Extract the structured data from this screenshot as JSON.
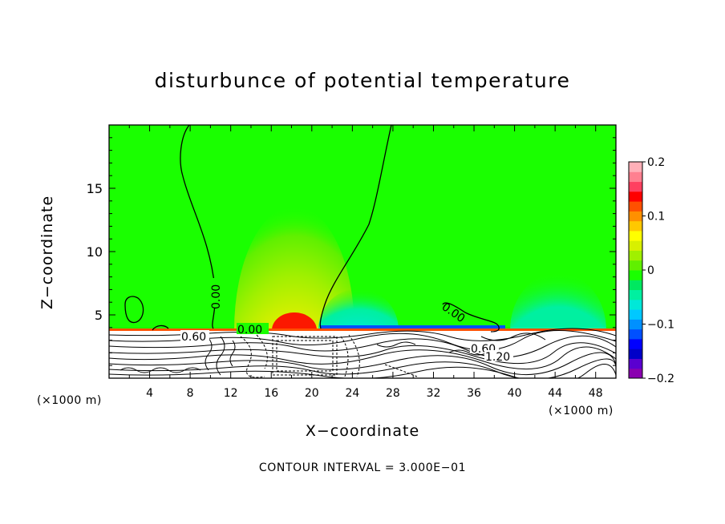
{
  "chart_data": {
    "type": "heatmap",
    "title": "disturbunce of potential temperature",
    "xlabel": "X−coordinate",
    "ylabel": "Z−coordinate",
    "x_unit": "(×1000 m)",
    "xlim": [
      0,
      50
    ],
    "ylim": [
      0,
      20
    ],
    "x_ticks": [
      4,
      8,
      12,
      16,
      20,
      24,
      28,
      32,
      36,
      40,
      44,
      48
    ],
    "y_ticks": [
      5,
      10,
      15
    ],
    "colorbar": {
      "range": [
        -0.2,
        0.2
      ],
      "tick_values": [
        0.2,
        0.1,
        0,
        -0.1,
        -0.2
      ],
      "tick_labels": [
        "0.2",
        "0.1",
        "0",
        "−0.1",
        "−0.2"
      ],
      "colors": [
        "#8a00b0",
        "#5a00d0",
        "#0000c8",
        "#0000ff",
        "#0050ff",
        "#0090ff",
        "#00c8ff",
        "#00e8d8",
        "#00f0a0",
        "#00e860",
        "#1aff00",
        "#60f000",
        "#a0f000",
        "#d8f000",
        "#ffff00",
        "#ffc800",
        "#ff9000",
        "#ff5000",
        "#ff0000",
        "#ff4060",
        "#ff8090",
        "#ffb0b8"
      ]
    },
    "contour_interval": "CONTOUR INTERVAL = 3.000E−01",
    "contour_labels": [
      "0.00",
      "0.00",
      "0.00",
      "0.60",
      "0.60",
      "1.20"
    ],
    "features": [
      {
        "name": "warm anomaly",
        "x": 18,
        "z": 4,
        "max": 0.2
      },
      {
        "name": "cool anomaly left",
        "x": 23,
        "z": 4.5,
        "min": -0.1
      },
      {
        "name": "cool anomaly right",
        "x": 45,
        "z": 5.5,
        "min": -0.05
      }
    ]
  }
}
